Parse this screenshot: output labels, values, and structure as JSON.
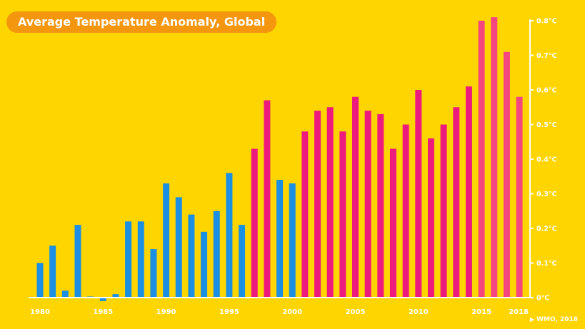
{
  "chart_data": {
    "type": "bar",
    "title": "Average Temperature Anomaly, Global",
    "source": "WMO, 2018",
    "y_ticks": [
      "0°C",
      "0.1°C",
      "0.2°C",
      "0.3°C",
      "0.4°C",
      "0.5°C",
      "0.6°C",
      "0.7°C",
      "0.8°C"
    ],
    "x_ticks": [
      "1980",
      "1985",
      "1990",
      "1995",
      "2000",
      "2005",
      "2010",
      "2015",
      "2018"
    ],
    "ylim": [
      0,
      0.8
    ],
    "colors": {
      "blue": "#1A8FE3",
      "magenta": "#EE1B7E",
      "pink": "#F6467F",
      "background": "#FFD500",
      "title_pill": "#F5960F"
    },
    "years": [
      1980,
      1981,
      1982,
      1983,
      1984,
      1985,
      1986,
      1987,
      1988,
      1989,
      1990,
      1991,
      1992,
      1993,
      1994,
      1995,
      1996,
      1997,
      1998,
      1999,
      2000,
      2001,
      2002,
      2003,
      2004,
      2005,
      2006,
      2007,
      2008,
      2009,
      2010,
      2011,
      2012,
      2013,
      2014,
      2015,
      2016,
      2017,
      2018
    ],
    "values": [
      0.1,
      0.15,
      0.02,
      0.21,
      0.0,
      -0.01,
      0.01,
      0.22,
      0.22,
      0.14,
      0.33,
      0.29,
      0.24,
      0.19,
      0.25,
      0.36,
      0.21,
      0.43,
      0.57,
      0.34,
      0.33,
      0.48,
      0.54,
      0.55,
      0.48,
      0.58,
      0.54,
      0.53,
      0.43,
      0.5,
      0.6,
      0.46,
      0.5,
      0.55,
      0.61,
      0.8,
      0.81,
      0.71,
      0.58
    ],
    "bar_colors": [
      "blue",
      "blue",
      "blue",
      "blue",
      "blue",
      "blue",
      "blue",
      "blue",
      "blue",
      "blue",
      "blue",
      "blue",
      "blue",
      "blue",
      "blue",
      "blue",
      "blue",
      "magenta",
      "magenta",
      "blue",
      "blue",
      "magenta",
      "magenta",
      "magenta",
      "magenta",
      "magenta",
      "magenta",
      "magenta",
      "magenta",
      "magenta",
      "magenta",
      "magenta",
      "magenta",
      "magenta",
      "magenta",
      "pink",
      "pink",
      "pink",
      "pink"
    ]
  }
}
